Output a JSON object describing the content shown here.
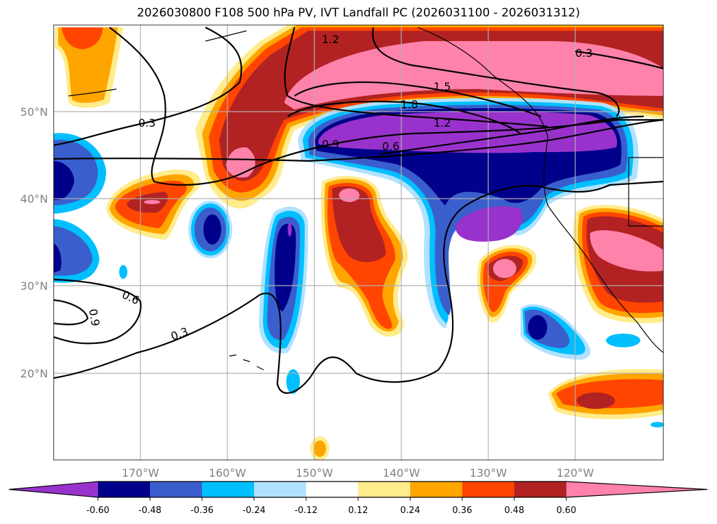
{
  "title": "2026030800 F108 500 hPa PV, IVT Landfall PC (2026031100 - 2026031312)",
  "axes": {
    "lat_labels": [
      "50°N",
      "40°N",
      "30°N",
      "20°N"
    ],
    "lon_labels": [
      "170°W",
      "160°W",
      "150°W",
      "140°W",
      "130°W",
      "120°W"
    ]
  },
  "colorbar": {
    "ticks": [
      "-0.60",
      "-0.48",
      "-0.36",
      "-0.24",
      "-0.12",
      "0.12",
      "0.24",
      "0.36",
      "0.48",
      "0.60"
    ],
    "colors": [
      "#9932CC",
      "#00008B",
      "#3A5FCD",
      "#00BFFF",
      "#B0E2FF",
      "#FFFFFF",
      "#FFEC8B",
      "#FFA500",
      "#FF4500",
      "#B22222",
      "#FF82AB"
    ]
  },
  "contour_labels": [
    "1.2",
    "0.3",
    "1.5",
    "1.8",
    "1.2",
    "0.9",
    "0.6",
    "0.3",
    "0.6",
    "0.9",
    "0.3"
  ]
}
